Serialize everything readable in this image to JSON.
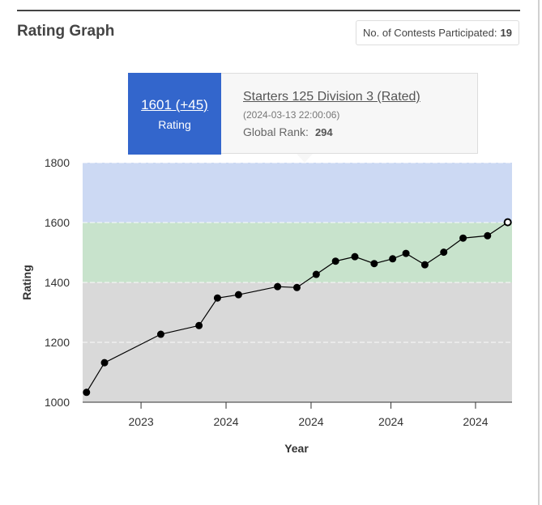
{
  "header": {
    "title": "Rating Graph",
    "contests_label": "No. of Contests Participated:",
    "contests_count": "19"
  },
  "tooltip": {
    "rating": "1601 (+45)",
    "rating_label": "Rating",
    "contest_name": "Starters 125 Division 3 (Rated)",
    "contest_date": "(2024-03-13 22:00:06)",
    "rank_label": "Global Rank:",
    "rank_value": "294"
  },
  "colors": {
    "band_blue": "#ccd9f3",
    "band_green": "#c8e3cc",
    "band_gray": "#d9d9d9",
    "line": "#000000",
    "tooltip_accent": "#3366cc"
  },
  "chart_data": {
    "type": "line",
    "xlabel": "Year",
    "ylabel": "Rating",
    "ylim": [
      1000,
      1800
    ],
    "yticks": [
      1000,
      1200,
      1400,
      1600,
      1800
    ],
    "xticks": [
      {
        "label": "2023",
        "pos": 0.136
      },
      {
        "label": "2024",
        "pos": 0.334
      },
      {
        "label": "2024",
        "pos": 0.532
      },
      {
        "label": "2024",
        "pos": 0.718
      },
      {
        "label": "2024",
        "pos": 0.915
      }
    ],
    "bands": [
      {
        "from": 1000,
        "to": 1400,
        "color": "#d9d9d9"
      },
      {
        "from": 1400,
        "to": 1600,
        "color": "#c8e3cc"
      },
      {
        "from": 1600,
        "to": 1800,
        "color": "#ccd9f3"
      }
    ],
    "series": [
      {
        "x": [
          0.009,
          0.051,
          0.182,
          0.271,
          0.314,
          0.363,
          0.454,
          0.499,
          0.544,
          0.589,
          0.634,
          0.679,
          0.722,
          0.753,
          0.797,
          0.841,
          0.886,
          0.943,
          0.99
        ],
        "y": [
          1033,
          1132,
          1227,
          1256,
          1348,
          1359,
          1386,
          1383,
          1427,
          1471,
          1486,
          1463,
          1479,
          1497,
          1459,
          1501,
          1548,
          1556,
          1601
        ]
      }
    ],
    "highlight_index": 18
  }
}
